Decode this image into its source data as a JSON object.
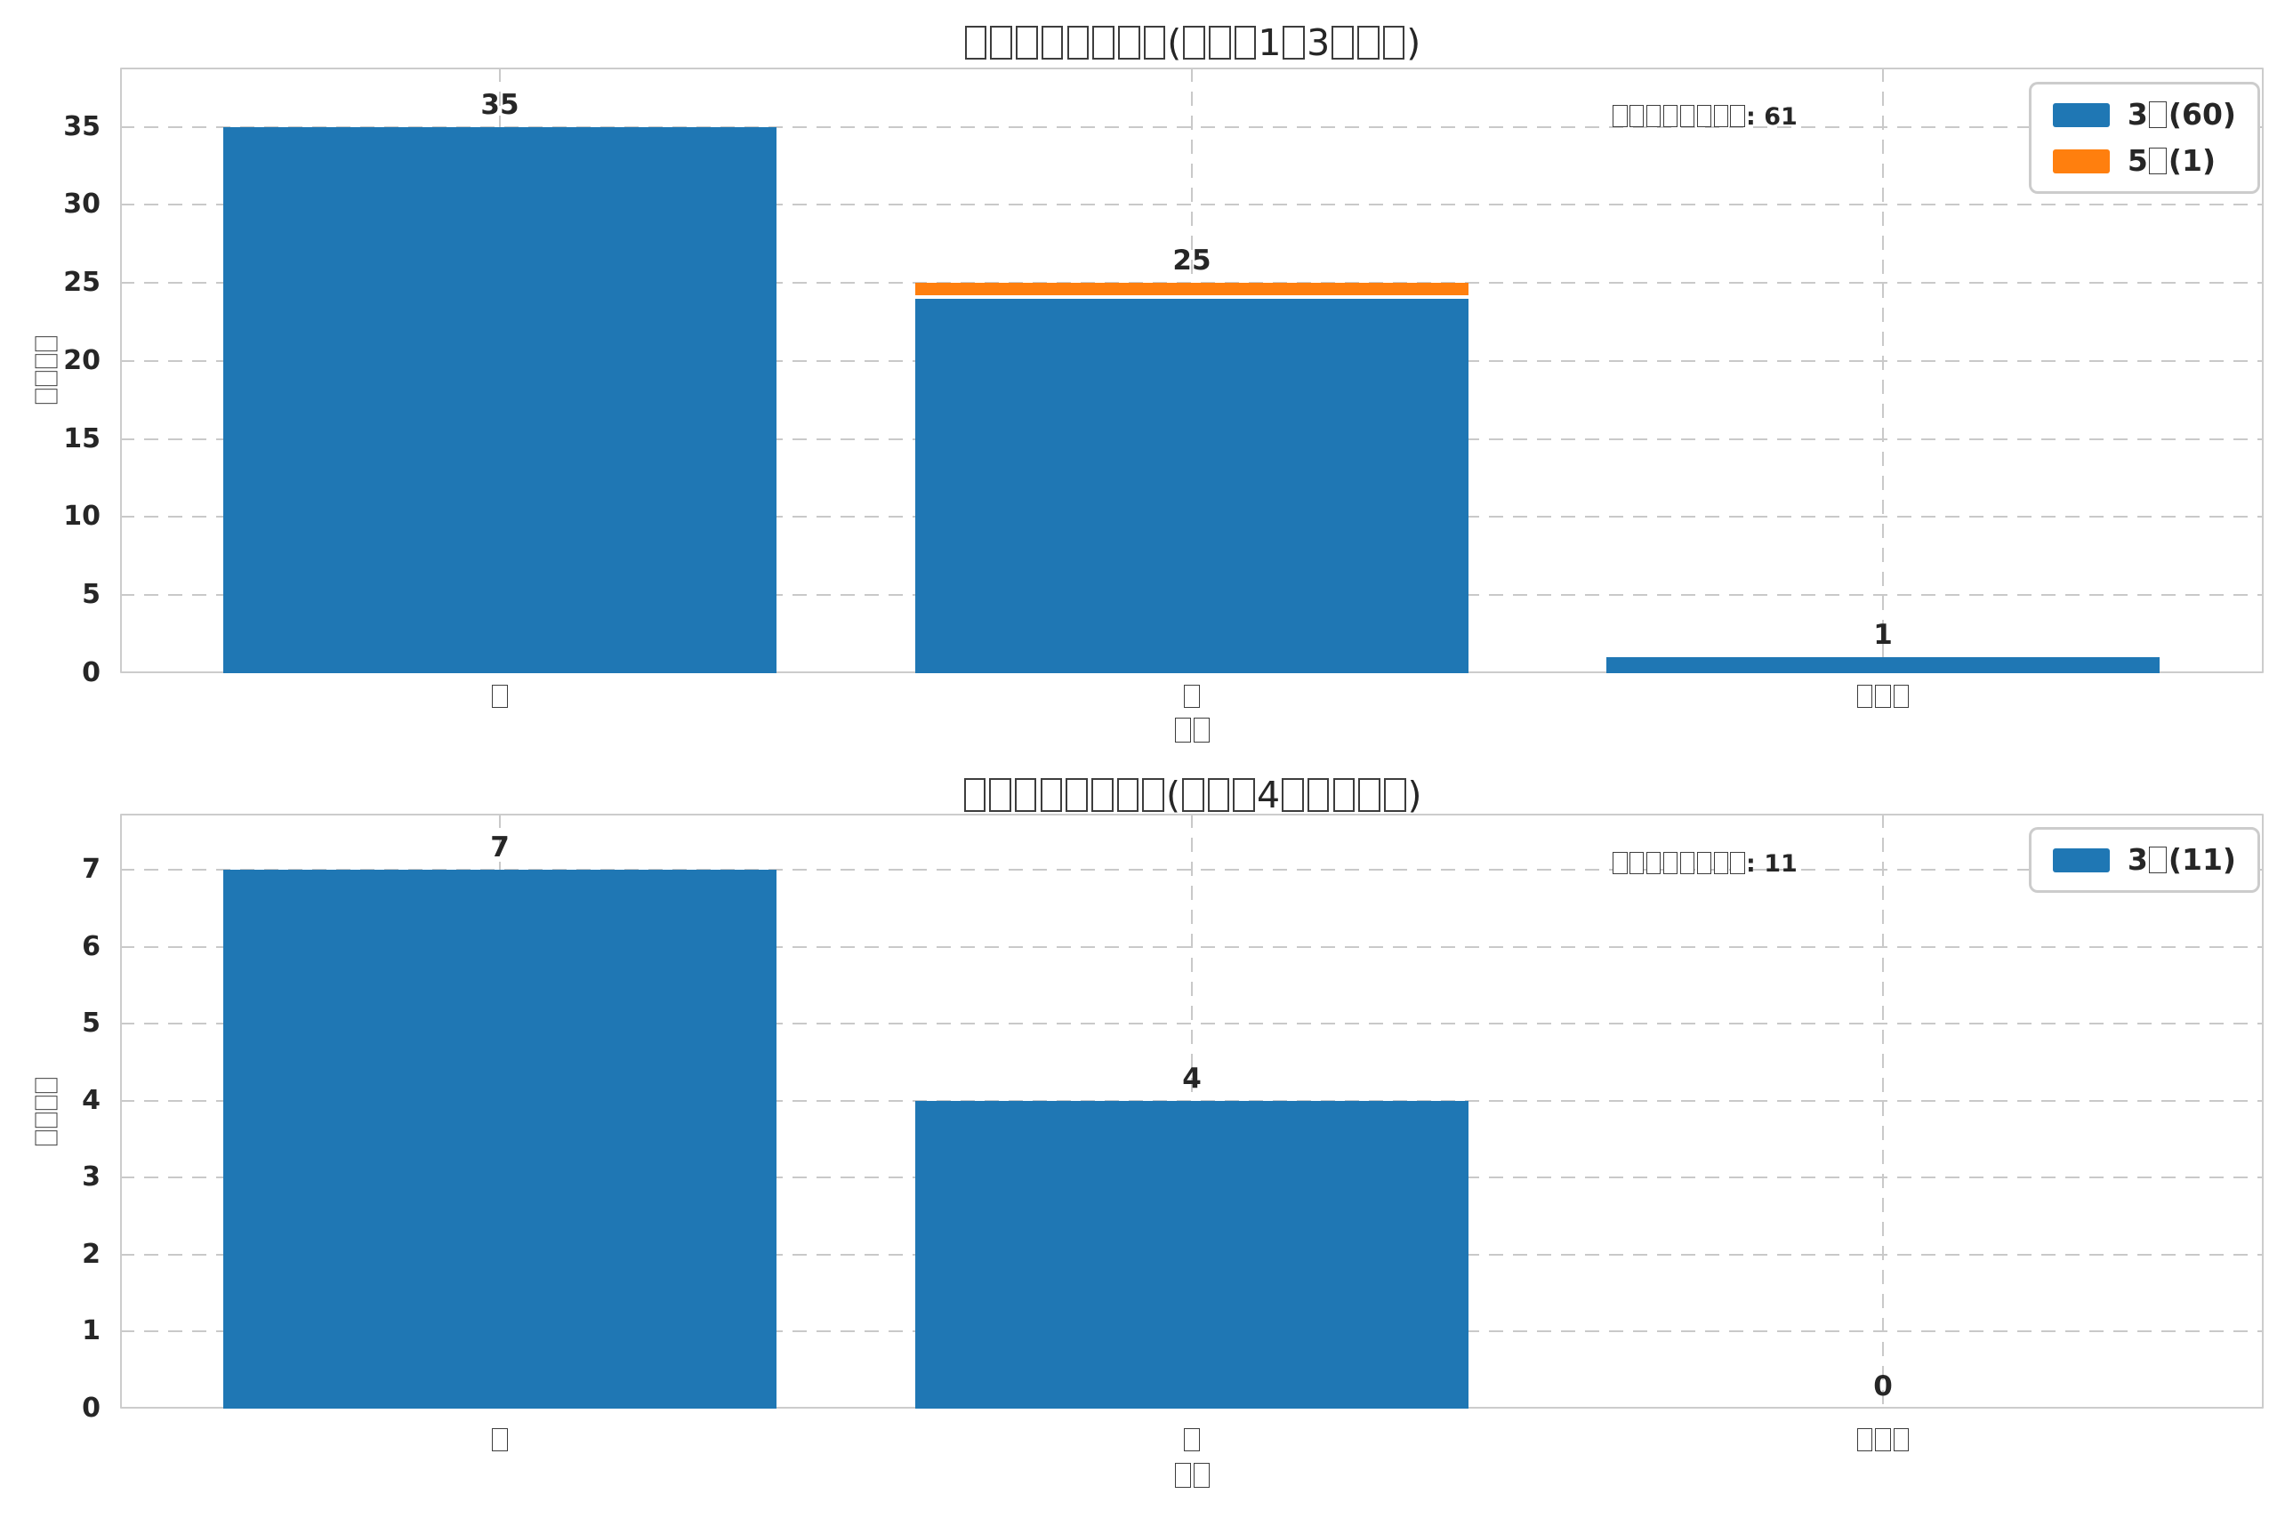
{
  "colors": {
    "blue": "#1f77b4",
    "orange": "#ff7f0e",
    "grid": "#c9c9c9",
    "spine": "#cccccc",
    "text": "#262626"
  },
  "chart_data": [
    {
      "type": "bar",
      "stacked": true,
      "title": "□□□□□□□□(□□□1□3□□□)",
      "ylabel": "□□□□",
      "xlabel": "□□",
      "annotation": "□□□□□□□□: 61",
      "categories": [
        "□",
        "□",
        "□□□"
      ],
      "series": [
        {
          "name": "3□(60)",
          "color": "#1f77b4",
          "values": [
            35,
            24,
            1
          ]
        },
        {
          "name": "5□(1)",
          "color": "#ff7f0e",
          "values": [
            0,
            1,
            0
          ]
        }
      ],
      "totals": [
        35,
        25,
        1
      ],
      "legend": [
        {
          "label": "3□(60)",
          "color": "#1f77b4"
        },
        {
          "label": "5□(1)",
          "color": "#ff7f0e"
        }
      ],
      "yticks": [
        0,
        5,
        10,
        15,
        20,
        25,
        30,
        35
      ],
      "ylim": [
        0,
        38.8
      ],
      "grid": "dashed",
      "legend_position": "upper right"
    },
    {
      "type": "bar",
      "stacked": false,
      "title": "□□□□□□□□(□□□4□□□□□)",
      "ylabel": "□□□□",
      "xlabel": "□□",
      "annotation": "□□□□□□□□: 11",
      "categories": [
        "□",
        "□",
        "□□□"
      ],
      "series": [
        {
          "name": "3□(11)",
          "color": "#1f77b4",
          "values": [
            7,
            4,
            0
          ]
        }
      ],
      "totals": [
        7,
        4,
        0
      ],
      "legend": [
        {
          "label": "3□(11)",
          "color": "#1f77b4"
        }
      ],
      "yticks": [
        0,
        1,
        2,
        3,
        4,
        5,
        6,
        7
      ],
      "ylim": [
        0,
        7.73
      ],
      "grid": "dashed",
      "legend_position": "upper right"
    }
  ]
}
